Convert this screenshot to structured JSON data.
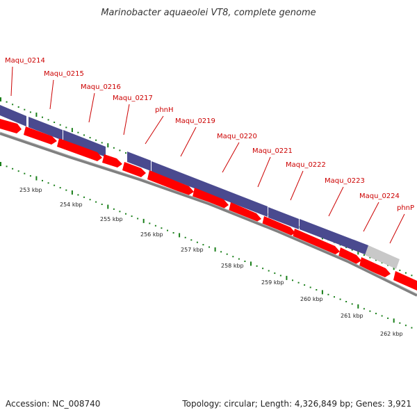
{
  "title": "Marinobacter aquaeolei VT8, complete genome",
  "footer": {
    "accession": "Accession: NC_008740",
    "stats": "Topology: circular; Length: 4,326,849 bp; Genes: 3,921"
  },
  "colors": {
    "gene_blue": "#4a4a8f",
    "gene_red": "#ff0000",
    "gene_grey": "#c8c8c8",
    "backbone": "#808080",
    "tick_green": "#1a7f1a",
    "label_red": "#cc0000"
  },
  "gene_labels": [
    "Maqu_0214",
    "Maqu_0215",
    "Maqu_0216",
    "Maqu_0217",
    "phnH",
    "Maqu_0219",
    "Maqu_0220",
    "Maqu_0221",
    "Maqu_0222",
    "Maqu_0223",
    "Maqu_0224",
    "phnP"
  ],
  "kbp_labels": [
    "253 kbp",
    "254 kbp",
    "255 kbp",
    "256 kbp",
    "257 kbp",
    "258 kbp",
    "259 kbp",
    "260 kbp",
    "261 kbp",
    "262 kbp"
  ]
}
